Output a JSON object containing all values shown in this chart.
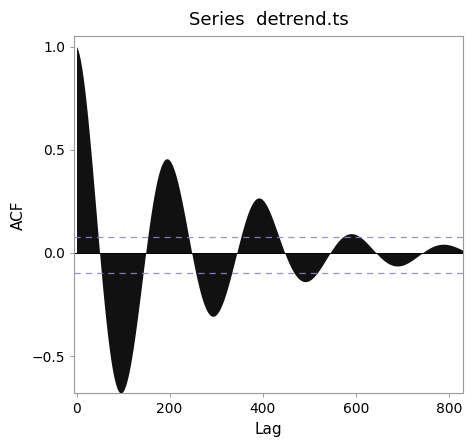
{
  "title": "Series  detrend.ts",
  "xlabel": "Lag",
  "ylabel": "ACF",
  "xlim": [
    -5,
    830
  ],
  "ylim": [
    -0.68,
    1.05
  ],
  "yticks": [
    -0.5,
    0.0,
    0.5,
    1.0
  ],
  "xticks": [
    0,
    200,
    400,
    600,
    800
  ],
  "ci_upper": 0.075,
  "ci_lower": -0.095,
  "ci_color": "#8888cc",
  "fill_color": "#111111",
  "background_color": "#ffffff",
  "title_fontsize": 13,
  "label_fontsize": 11,
  "tick_fontsize": 10,
  "alpha_decay": 0.004,
  "period": 198,
  "extra_bump_lag": 390,
  "extra_bump_amp": 0.06
}
